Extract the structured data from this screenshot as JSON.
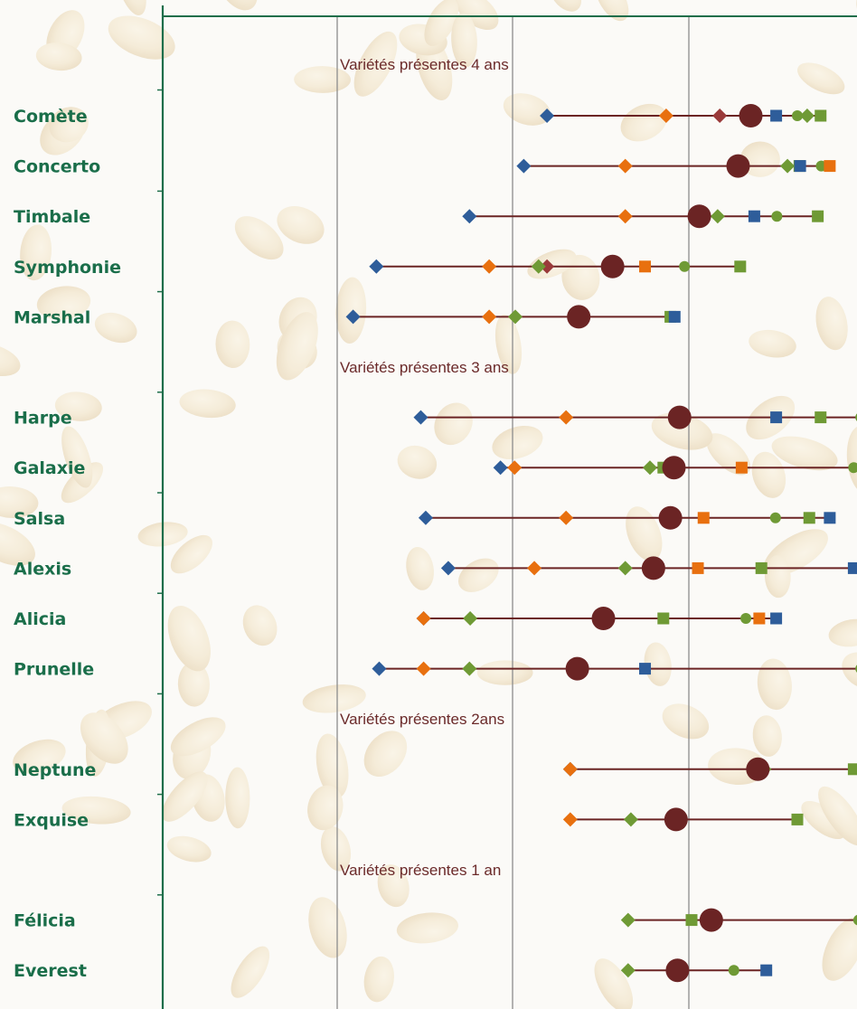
{
  "chart_data": {
    "type": "scatter",
    "title": "",
    "xlabel": "",
    "ylabel": "",
    "xlim": [
      0,
      100
    ],
    "grid": true,
    "group_headers": [
      {
        "label": "Variétés présentes 4 ans",
        "after_index": -1
      },
      {
        "label": "Variétés présentes 3 ans",
        "after_index": 4
      },
      {
        "label": "Variétés présentes 2ans",
        "after_index": 10
      },
      {
        "label": "Variétés présentes 1 an",
        "after_index": 12
      }
    ],
    "categories": [
      "Comète",
      "Concerto",
      "Timbale",
      "Symphonie",
      "Marshal",
      "Harpe",
      "Galaxie",
      "Salsa",
      "Alexis",
      "Alicia",
      "Prunelle",
      "Neptune",
      "Exquise",
      "Félicia",
      "Everest"
    ],
    "range_color": "#6b2424",
    "mean_color": "#6b2424",
    "series": [
      {
        "marker": "diamond",
        "color": "#2e5d9a",
        "values": [
          54.5,
          51.2,
          43.5,
          30.3,
          27.0,
          36.6,
          47.9,
          37.3,
          40.5,
          37.0,
          30.7,
          57.8,
          null,
          null,
          null
        ]
      },
      {
        "marker": "diamond",
        "color": "#e8700f",
        "values": [
          71.4,
          65.6,
          65.6,
          46.3,
          46.3,
          57.2,
          49.9,
          57.2,
          52.7,
          37.0,
          37.0,
          57.8,
          57.8,
          null,
          null
        ]
      },
      {
        "marker": "diamond",
        "color": "#9a3a3a",
        "values": [
          79.0,
          null,
          null,
          54.5,
          null,
          null,
          null,
          null,
          null,
          null,
          null,
          null,
          null,
          null,
          null
        ]
      },
      {
        "marker": "diamond",
        "color": "#6f9a35",
        "values": [
          91.4,
          88.6,
          78.7,
          53.3,
          50.0,
          null,
          69.1,
          72.3,
          65.6,
          43.6,
          43.5,
          85.3,
          66.4,
          66.0,
          66.0
        ]
      },
      {
        "marker": "circle",
        "color": "#6f9a35",
        "values": [
          90.0,
          93.4,
          87.1,
          74.0,
          72.1,
          99.0,
          98.0,
          86.9,
          84.9,
          82.7,
          99.0,
          99.5,
          90.0,
          98.7,
          81.0
        ]
      },
      {
        "marker": "square",
        "color": "#6f9a35",
        "values": [
          93.3,
          90.3,
          92.9,
          81.9,
          72.0,
          93.3,
          71.0,
          91.7,
          84.9,
          71.0,
          null,
          98.0,
          90.0,
          75.0,
          null
        ]
      },
      {
        "marker": "square",
        "color": "#e8700f",
        "values": [
          null,
          94.6,
          null,
          68.4,
          null,
          null,
          82.1,
          76.7,
          75.9,
          84.6,
          null,
          null,
          null,
          null,
          null
        ]
      },
      {
        "marker": "square",
        "color": "#2e5d9a",
        "values": [
          87.0,
          90.4,
          83.9,
          null,
          72.6,
          87.0,
          null,
          94.6,
          98.0,
          87.0,
          68.4,
          null,
          null,
          null,
          85.6
        ]
      }
    ],
    "mean": [
      83.4,
      81.6,
      76.1,
      63.8,
      59.0,
      73.3,
      72.5,
      72.0,
      69.6,
      62.5,
      58.8,
      84.4,
      72.8,
      77.8,
      73.0
    ]
  }
}
